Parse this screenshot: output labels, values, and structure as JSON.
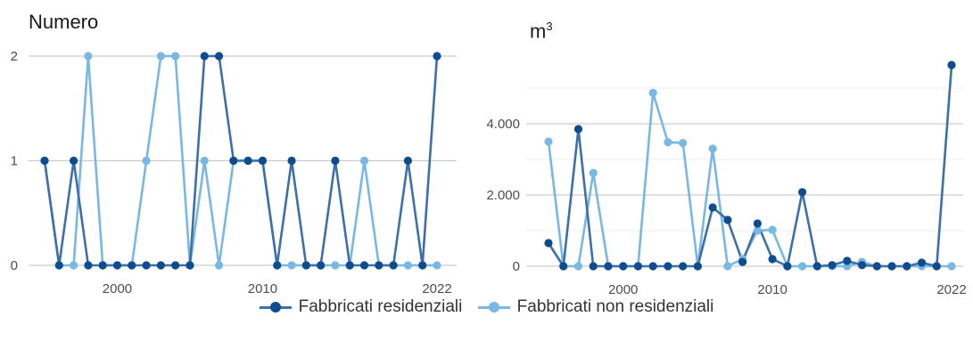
{
  "colors": {
    "residential": "#0d4c8f",
    "residential_line": "#3e6fa8",
    "nonresidential": "#79b8e3"
  },
  "legend": {
    "residential": "Fabbricati residenziali",
    "nonresidential": "Fabbricati non residenziali"
  },
  "chart_data": [
    {
      "type": "line",
      "title": "Numero",
      "ylim": [
        0,
        2.15
      ],
      "yticks": [
        0,
        1,
        2
      ],
      "ytick_labels": [
        "0",
        "1",
        "2"
      ],
      "xticks": [
        2000,
        2010,
        2022
      ],
      "xtick_labels": [
        "2000",
        "2010",
        "2022"
      ],
      "grid": true,
      "legend_position": "bottom",
      "x": [
        1995,
        1996,
        1997,
        1998,
        1999,
        2000,
        2001,
        2002,
        2003,
        2004,
        2005,
        2006,
        2007,
        2008,
        2009,
        2010,
        2011,
        2012,
        2013,
        2014,
        2015,
        2016,
        2017,
        2018,
        2019,
        2020,
        2021,
        2022
      ],
      "series": [
        {
          "name": "Fabbricati residenziali",
          "values": [
            1,
            0,
            1,
            0,
            0,
            0,
            0,
            0,
            0,
            0,
            0,
            2,
            2,
            1,
            1,
            1,
            0,
            1,
            0,
            0,
            1,
            0,
            0,
            0,
            0,
            1,
            0,
            2
          ]
        },
        {
          "name": "Fabbricati non residenziali",
          "values": [
            1,
            0,
            0,
            2,
            0,
            0,
            0,
            1,
            2,
            2,
            0,
            1,
            0,
            1,
            1,
            1,
            0,
            0,
            0,
            0,
            0,
            0,
            1,
            0,
            0,
            0,
            0,
            0
          ]
        }
      ]
    },
    {
      "type": "line",
      "title": "m³",
      "ylim": [
        0,
        6000
      ],
      "yticks": [
        0,
        2000,
        4000
      ],
      "ytick_labels": [
        "0",
        "2.000",
        "4.000"
      ],
      "xticks": [
        2000,
        2010,
        2022
      ],
      "xtick_labels": [
        "2000",
        "2010",
        "2022"
      ],
      "grid": true,
      "legend_position": "bottom",
      "x": [
        1995,
        1996,
        1997,
        1998,
        1999,
        2000,
        2001,
        2002,
        2003,
        2004,
        2005,
        2006,
        2007,
        2008,
        2009,
        2010,
        2011,
        2012,
        2013,
        2014,
        2015,
        2016,
        2017,
        2018,
        2019,
        2020,
        2021,
        2022
      ],
      "series": [
        {
          "name": "Fabbricati residenziali",
          "values": [
            650,
            0,
            3850,
            0,
            0,
            0,
            0,
            0,
            0,
            0,
            0,
            1650,
            1300,
            120,
            1200,
            200,
            0,
            2080,
            0,
            30,
            150,
            30,
            0,
            0,
            0,
            100,
            0,
            5650
          ]
        },
        {
          "name": "Fabbricati non residenziali",
          "values": [
            3500,
            0,
            0,
            2620,
            0,
            0,
            0,
            4870,
            3480,
            3460,
            0,
            3300,
            0,
            200,
            1000,
            1020,
            0,
            0,
            0,
            0,
            0,
            120,
            0,
            0,
            0,
            0,
            0,
            0
          ]
        }
      ]
    }
  ]
}
